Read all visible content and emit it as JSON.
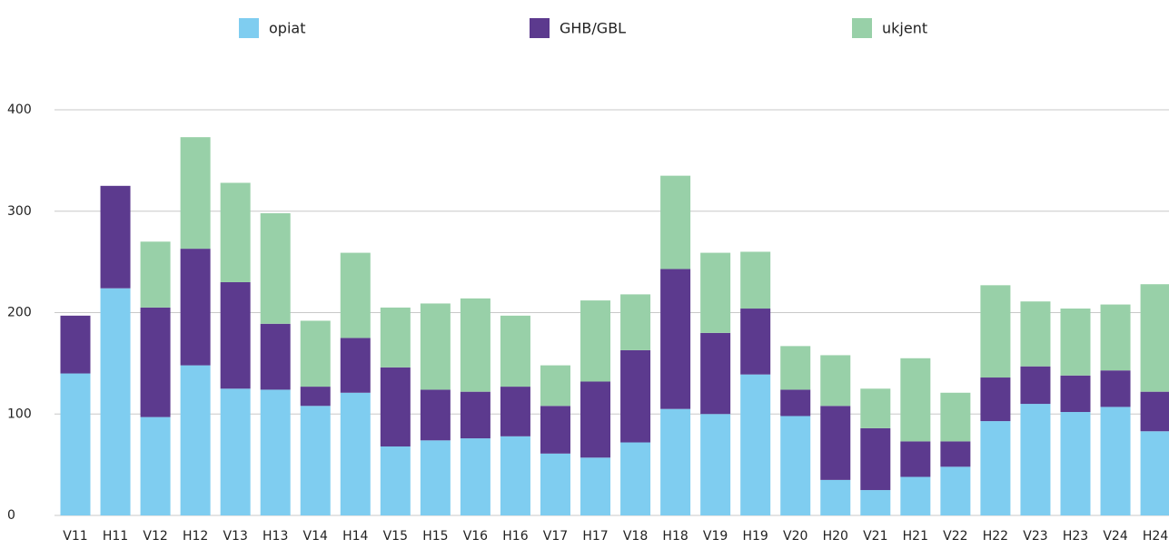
{
  "chart_data": {
    "type": "stacked_bar",
    "categories": [
      "V11",
      "H11",
      "V12",
      "H12",
      "V13",
      "H13",
      "V14",
      "H14",
      "V15",
      "H15",
      "V16",
      "H16",
      "V17",
      "H17",
      "V18",
      "H18",
      "V19",
      "H19",
      "V20",
      "H20",
      "V21",
      "H21",
      "V22",
      "H22",
      "V23",
      "H23",
      "V24",
      "H24"
    ],
    "series": [
      {
        "name": "opiat",
        "color": "#7fcdf0",
        "values": [
          140,
          224,
          97,
          148,
          125,
          124,
          108,
          121,
          68,
          74,
          76,
          78,
          61,
          57,
          72,
          105,
          100,
          139,
          98,
          35,
          25,
          38,
          48,
          93,
          110,
          102,
          107,
          83
        ]
      },
      {
        "name": "GHB/GBL",
        "color": "#5c3a8e",
        "values": [
          57,
          101,
          108,
          115,
          105,
          65,
          19,
          54,
          78,
          50,
          46,
          49,
          47,
          75,
          91,
          138,
          80,
          65,
          26,
          73,
          61,
          35,
          25,
          43,
          37,
          36,
          36,
          39
        ]
      },
      {
        "name": "ukjent",
        "color": "#98d0a8",
        "values": [
          0,
          0,
          65,
          110,
          98,
          109,
          65,
          84,
          59,
          85,
          92,
          70,
          40,
          80,
          55,
          92,
          79,
          56,
          43,
          50,
          39,
          82,
          48,
          91,
          64,
          66,
          65,
          106
        ]
      }
    ],
    "ylim": [
      0,
      400
    ],
    "yticks": [
      0,
      100,
      200,
      300,
      400
    ],
    "grid": true,
    "legend": "top"
  }
}
